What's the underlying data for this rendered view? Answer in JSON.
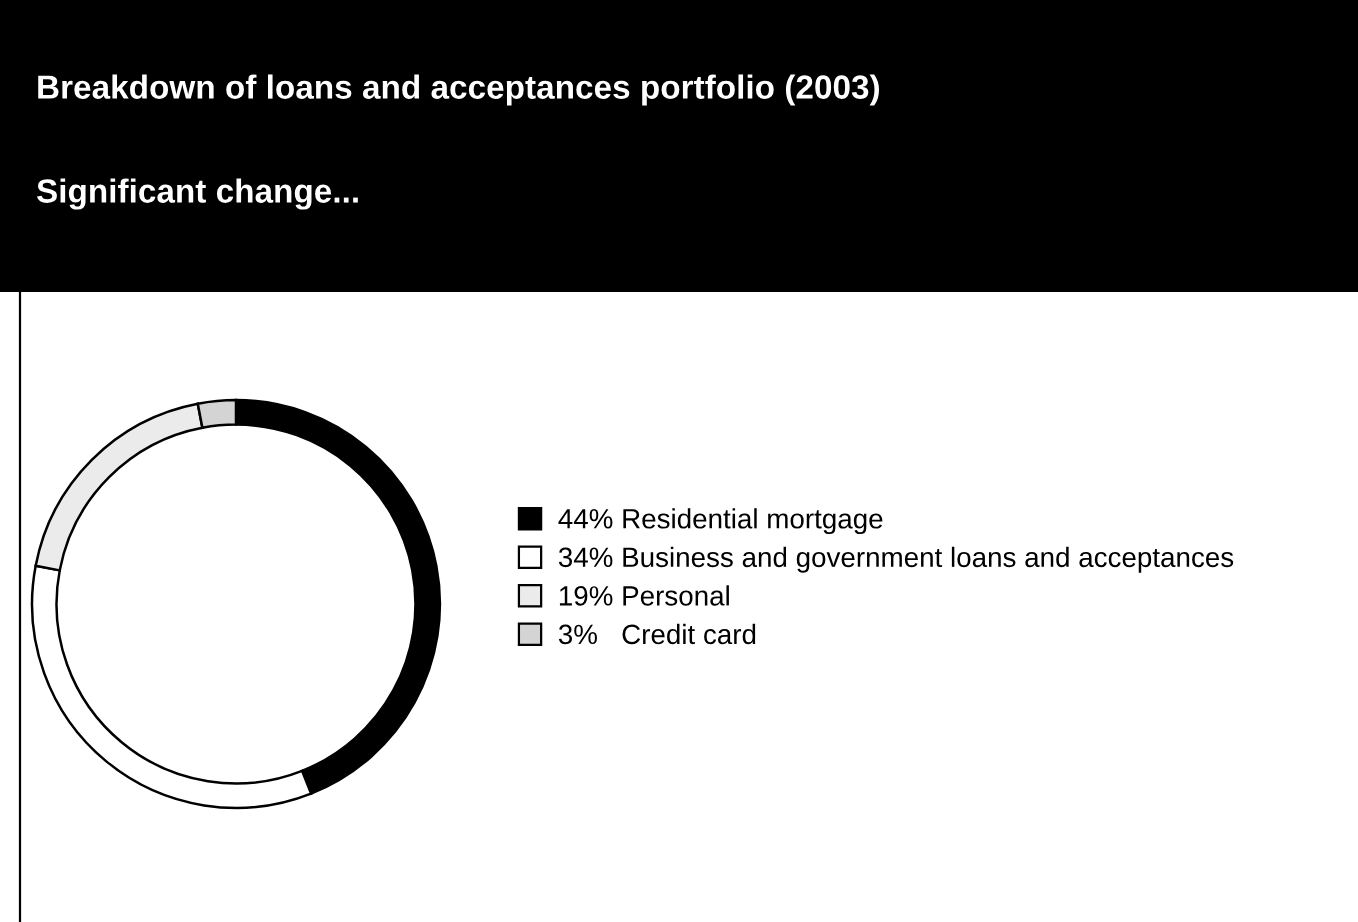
{
  "chart_data": {
    "type": "donut",
    "title": "Breakdown of loans and acceptances portfolio (2003)",
    "subtitle": "Significant change...",
    "categories": [
      "44% Residential mortgage",
      "34% Business and government loans and acceptances",
      "19% Personal",
      "3%   Credit card"
    ],
    "values": [
      44,
      34,
      19,
      3
    ],
    "colors": [
      "#000000",
      "#ffffff",
      "#ebebeb",
      "#d4d4d4"
    ],
    "legend": "right"
  }
}
